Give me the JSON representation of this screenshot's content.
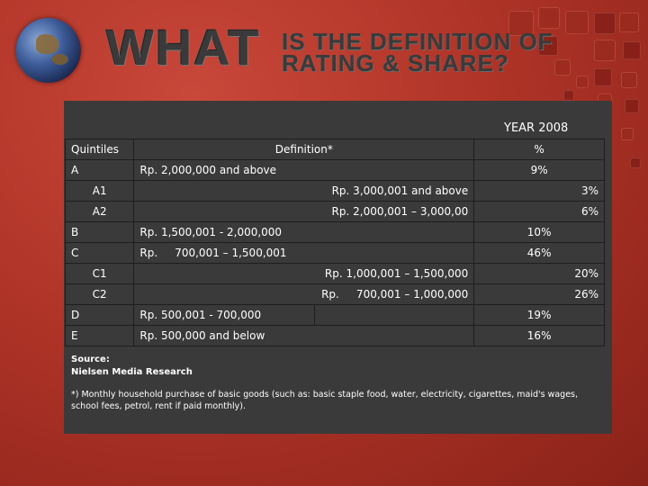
{
  "title": {
    "big": "WHAT",
    "line1": "IS THE DEFINITION OF",
    "line2": "RATING & SHARE?"
  },
  "year": "YEAR 2008",
  "table": {
    "headers": {
      "quintiles": "Quintiles",
      "definition": "Definition*",
      "percent": "%"
    },
    "rows": [
      {
        "q": "A",
        "def": "Rp. 2,000,000 and above",
        "pct": "9%"
      },
      {
        "q": "A1",
        "def": "Rp. 3,000,001 and above",
        "pct": "3%"
      },
      {
        "q": "A2",
        "def": "Rp. 2,000,001 – 3,000,00",
        "pct": "6%"
      },
      {
        "q": "B",
        "def": "Rp. 1,500,001 - 2,000,000",
        "pct": "10%"
      },
      {
        "q": "C",
        "def": "Rp.     700,001 – 1,500,001",
        "pct": "46%"
      },
      {
        "q": "C1",
        "def": "Rp. 1,000,001 – 1,500,000",
        "pct": "20%"
      },
      {
        "q": "C2",
        "def": "Rp.     700,001 – 1,000,000",
        "pct": "26%"
      },
      {
        "q": "D",
        "def": "Rp. 500,001 - 700,000",
        "pct": "19%"
      },
      {
        "q": "E",
        "def": "Rp. 500,000 and below",
        "pct": "16%"
      }
    ]
  },
  "source": {
    "label": "Source:",
    "name": "Nielsen Media Research"
  },
  "footnote": "*) Monthly household purchase of basic goods (such as: basic staple food, water, electricity, cigarettes, maid's wages, school fees, petrol, rent if paid monthly).",
  "colors": {
    "background": "#b03428",
    "panel": "#3a3a3a",
    "title": "#3a3a3a",
    "text": "#ffffff"
  },
  "icons": [
    "globe-icon"
  ]
}
